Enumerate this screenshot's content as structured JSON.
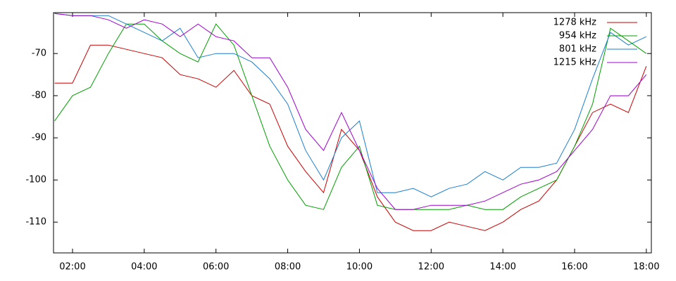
{
  "chart_data": {
    "type": "line",
    "x": [
      1.5,
      2,
      2.5,
      3,
      3.5,
      4,
      4.5,
      5,
      5.5,
      6,
      6.5,
      7,
      7.5,
      8,
      8.5,
      9,
      9.5,
      10,
      10.5,
      11,
      11.5,
      12,
      12.5,
      13,
      13.5,
      14,
      14.5,
      15,
      15.5,
      16,
      16.5,
      17,
      17.5,
      18
    ],
    "xlim": [
      1.47,
      18.14
    ],
    "xticks": [
      {
        "value": 2,
        "label": "02:00"
      },
      {
        "value": 4,
        "label": "04:00"
      },
      {
        "value": 6,
        "label": "06:00"
      },
      {
        "value": 8,
        "label": "08:00"
      },
      {
        "value": 10,
        "label": "10:00"
      },
      {
        "value": 12,
        "label": "12:00"
      },
      {
        "value": 14,
        "label": "14:00"
      },
      {
        "value": 16,
        "label": "16:00"
      },
      {
        "value": 18,
        "label": "18:00"
      }
    ],
    "ylim": [
      -117.3,
      -60.3
    ],
    "yticks": [
      -110,
      -100,
      -90,
      -80,
      -70
    ],
    "legend": "top-right",
    "series": [
      {
        "name": "1278 kHz",
        "color": "#cc0000",
        "values": [
          -77,
          -77,
          -68,
          -68,
          -69,
          -70,
          -71,
          -75,
          -76,
          -78,
          -74,
          -80,
          -82,
          -92,
          -98,
          -103,
          -88,
          -93,
          -104,
          -110,
          -112,
          -112,
          -110,
          -111,
          -112,
          -110,
          -107,
          -105,
          -100,
          -92,
          -84,
          -82,
          -84,
          -73
        ]
      },
      {
        "name": "954 kHz",
        "color": "#00a000",
        "values": [
          -86,
          -80,
          -78,
          -70,
          -63,
          -63,
          -67,
          -70,
          -72,
          -63,
          -68,
          -80,
          -92,
          -100,
          -106,
          -107,
          -97,
          -92,
          -106,
          -107,
          -107,
          -107,
          -107,
          -106,
          -107,
          -107,
          -104,
          -102,
          -100,
          -92,
          -82,
          -64,
          -67,
          -70
        ]
      },
      {
        "name": "801 kHz",
        "color": "#1a7fd0",
        "values": [
          -60.5,
          -61,
          -61,
          -61,
          -63,
          -65,
          -67,
          -64,
          -71,
          -70,
          -70,
          -72,
          -76,
          -82,
          -93,
          -100,
          -90,
          -86,
          -103,
          -103,
          -102,
          -104,
          -102,
          -101,
          -98,
          -100,
          -97,
          -97,
          -96,
          -88,
          -76,
          -65,
          -68,
          -66
        ]
      },
      {
        "name": "1215 kHz",
        "color": "#a000d0",
        "values": [
          -60.5,
          -61,
          -61,
          -62,
          -64,
          -62,
          -63,
          -66,
          -63,
          -66,
          -67,
          -71,
          -71,
          -78,
          -88,
          -93,
          -84,
          -93,
          -102,
          -107,
          -107,
          -106,
          -106,
          -106,
          -105,
          -103,
          -101,
          -100,
          -98,
          -93,
          -88,
          -80,
          -80,
          -75
        ]
      }
    ]
  }
}
